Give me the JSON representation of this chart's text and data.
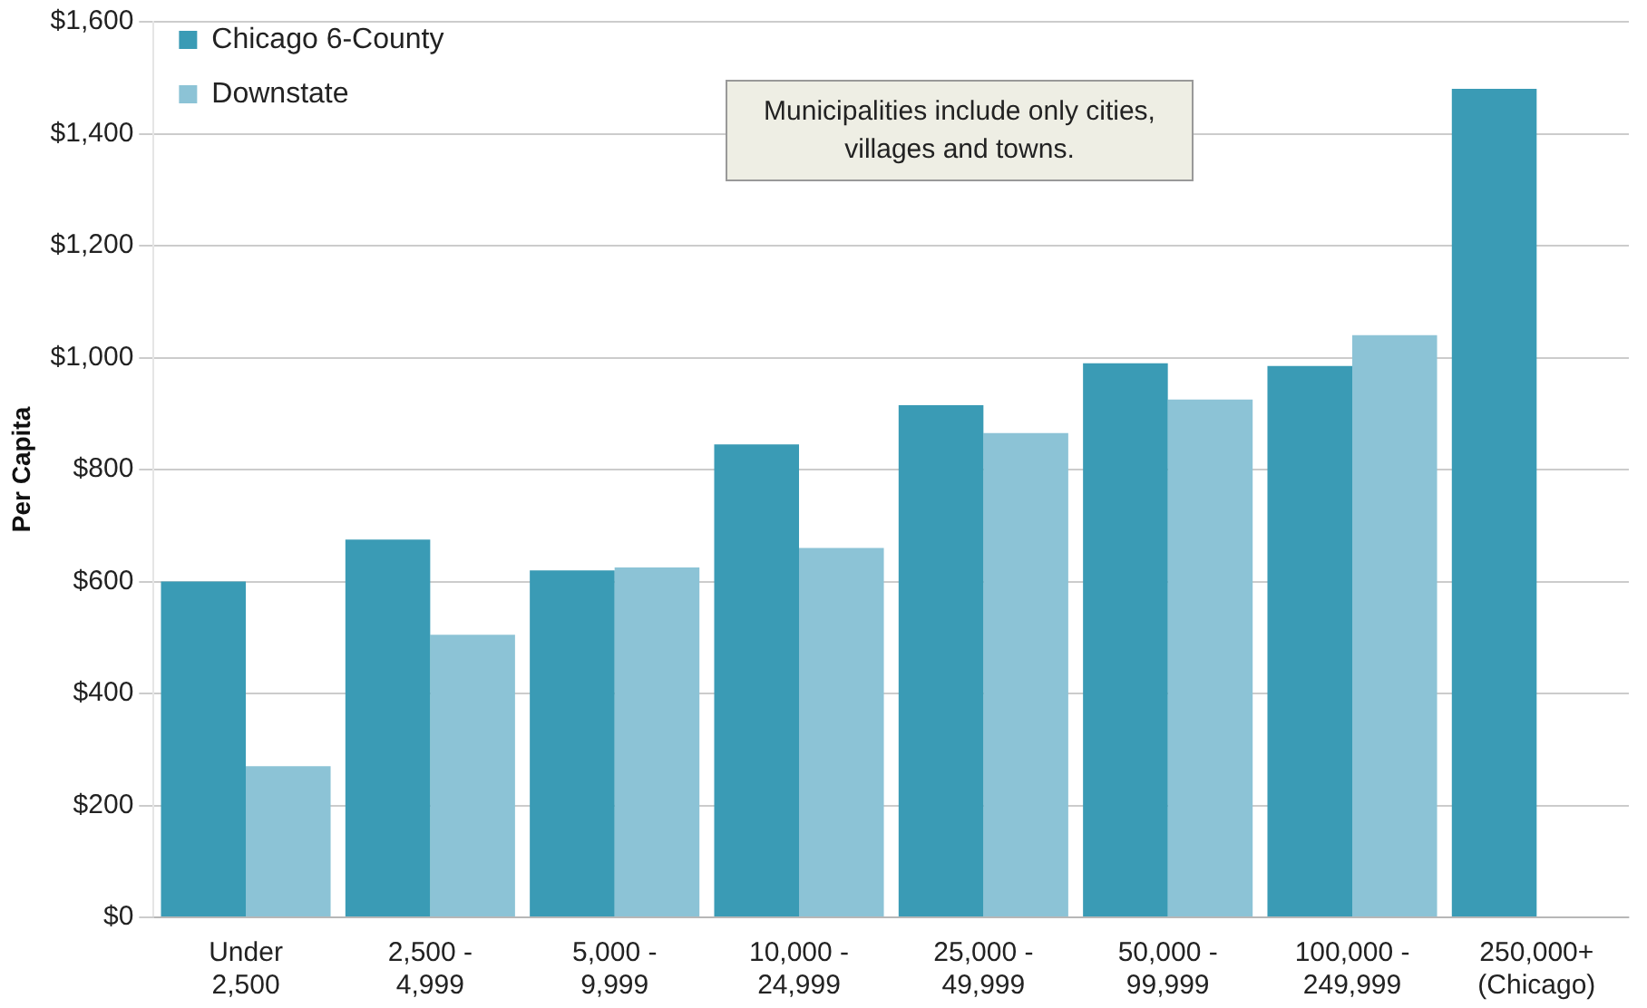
{
  "chart_data": {
    "type": "bar",
    "ylabel": "Per Capita",
    "categories": [
      "Under 2,500",
      "2,500 - 4,999",
      "5,000 - 9,999",
      "10,000 - 24,999",
      "25,000 - 49,999",
      "50,000 - 99,999",
      "100,000 - 249,999",
      "250,000+ (Chicago)"
    ],
    "series": [
      {
        "name": "Chicago 6-County",
        "color": "#3a9bb5",
        "values": [
          600,
          675,
          620,
          845,
          915,
          990,
          985,
          1480
        ]
      },
      {
        "name": "Downstate",
        "color": "#8cc3d6",
        "values": [
          270,
          505,
          625,
          660,
          865,
          925,
          1040,
          null
        ]
      }
    ],
    "ylim": [
      0,
      1600
    ],
    "yticks": [
      {
        "value": 0,
        "label": "$0"
      },
      {
        "value": 200,
        "label": "$200"
      },
      {
        "value": 400,
        "label": "$400"
      },
      {
        "value": 600,
        "label": "$600"
      },
      {
        "value": 800,
        "label": "$800"
      },
      {
        "value": 1000,
        "label": "$1,000"
      },
      {
        "value": 1200,
        "label": "$1,200"
      },
      {
        "value": 1400,
        "label": "$1,400"
      },
      {
        "value": 1600,
        "label": "$1,600"
      }
    ],
    "grid": "y",
    "legend": "top left",
    "annotations": [
      "Municipalities include only cities, villages and towns."
    ]
  }
}
